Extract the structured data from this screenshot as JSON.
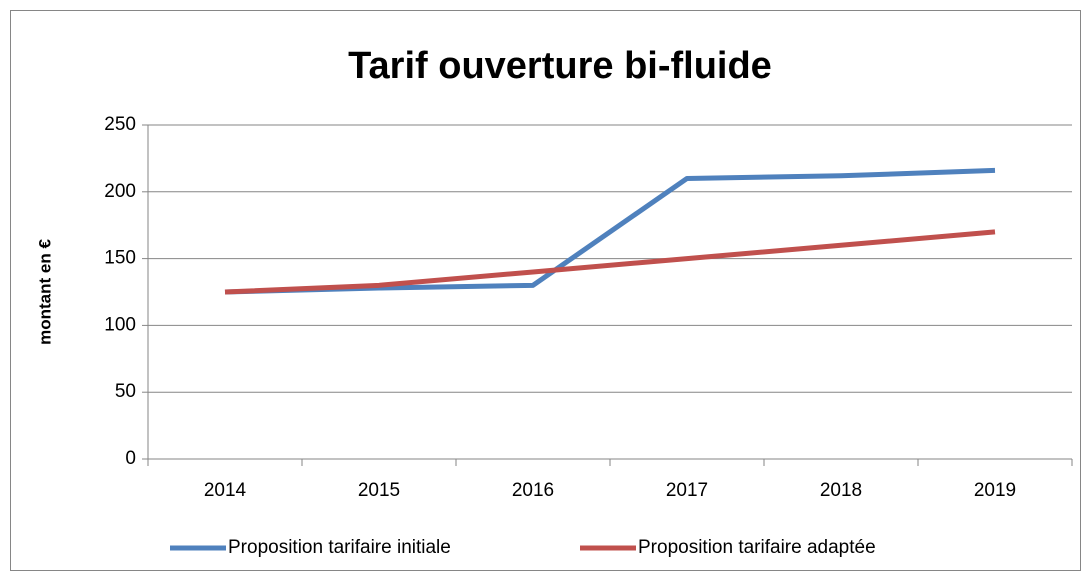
{
  "chart_data": {
    "type": "line",
    "title": "Tarif ouverture bi-fluide",
    "y_label": "montant en €",
    "categories": [
      "2014",
      "2015",
      "2016",
      "2017",
      "2018",
      "2019"
    ],
    "series": [
      {
        "name": "Proposition tarifaire initiale",
        "color": "#4f81bd",
        "values": [
          125,
          128,
          130,
          210,
          212,
          216
        ]
      },
      {
        "name": "Proposition tarifaire adaptée",
        "color": "#c0504d",
        "values": [
          125,
          130,
          140,
          150,
          160,
          170
        ]
      }
    ],
    "ylim": [
      0,
      250
    ],
    "yticks": [
      0,
      50,
      100,
      150,
      200,
      250
    ],
    "grid": true,
    "legend": "bottom"
  }
}
